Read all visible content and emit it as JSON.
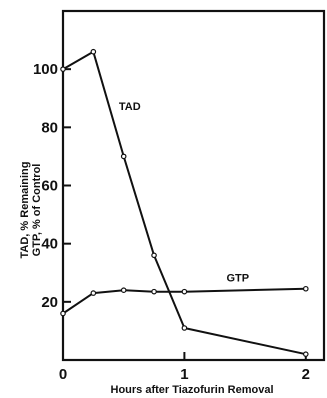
{
  "chart_data": {
    "type": "line",
    "xlabel": "Hours after Tiazofurin Removal",
    "ylabel": [
      "TAD, % Remaining",
      "GTP, % of Control"
    ],
    "xlim": [
      0,
      2.15
    ],
    "ylim": [
      0,
      120
    ],
    "x_ticks": [
      0,
      1,
      2
    ],
    "y_ticks": [
      20,
      40,
      60,
      80,
      100
    ],
    "y_ticks_unlabeled": [
      0
    ],
    "grid": false,
    "series": [
      {
        "name": "TAD",
        "x": [
          0,
          0.25,
          0.5,
          0.75,
          1.0,
          2.0
        ],
        "y": [
          100,
          106,
          70,
          36,
          11,
          2
        ]
      },
      {
        "name": "GTP",
        "x": [
          0,
          0.25,
          0.5,
          0.75,
          1.0,
          2.0
        ],
        "y": [
          16,
          23,
          24,
          23.5,
          23.5,
          24.5
        ]
      }
    ]
  }
}
